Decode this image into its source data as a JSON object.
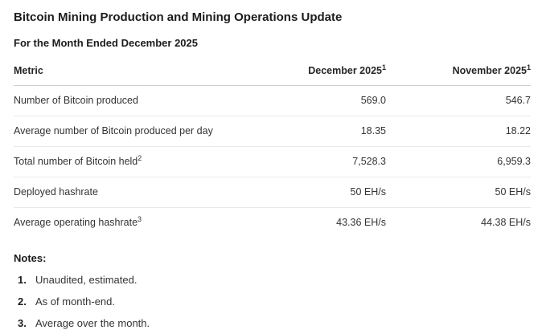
{
  "page": {
    "title": "Bitcoin Mining Production and Mining Operations Update",
    "subtitle": "For the Month Ended December 2025"
  },
  "table": {
    "headers": {
      "metric": "Metric",
      "december": "December 2025",
      "december_sup": "1",
      "november": "November 2025",
      "november_sup": "1"
    },
    "rows": [
      {
        "metric": "Number of Bitcoin produced",
        "sup": "",
        "december": "569.0",
        "november": "546.7"
      },
      {
        "metric": "Average number of Bitcoin produced per day",
        "sup": "",
        "december": "18.35",
        "november": "18.22"
      },
      {
        "metric": "Total number of Bitcoin held",
        "sup": "2",
        "december": "7,528.3",
        "november": "6,959.3"
      },
      {
        "metric": "Deployed hashrate",
        "sup": "",
        "december": "50 EH/s",
        "november": "50 EH/s"
      },
      {
        "metric": "Average operating hashrate",
        "sup": "3",
        "december": "43.36 EH/s",
        "november": "44.38 EH/s"
      }
    ]
  },
  "notes": {
    "heading": "Notes:",
    "items": [
      {
        "num": "1.",
        "text": "Unaudited, estimated."
      },
      {
        "num": "2.",
        "text": "As of month-end."
      },
      {
        "num": "3.",
        "text": "Average over the month."
      }
    ]
  },
  "colors": {
    "background": "#ffffff",
    "text": "#333333",
    "heading_text": "#1c1c1c",
    "header_border": "#cfcfcf",
    "row_border": "#e9e9e9"
  }
}
